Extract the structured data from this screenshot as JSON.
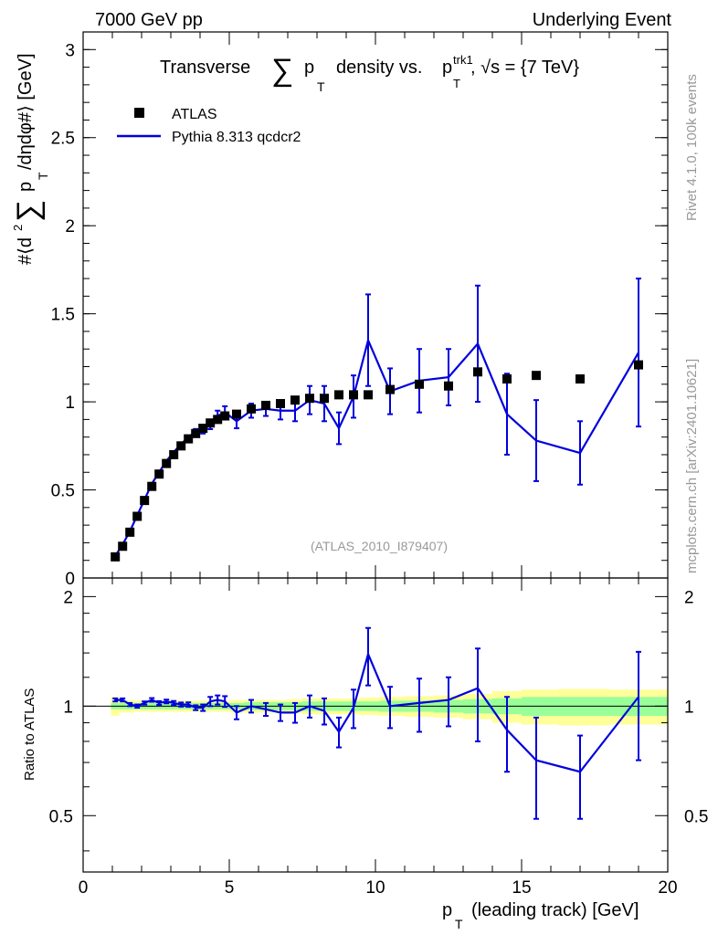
{
  "header": {
    "left": "7000 GeV pp",
    "right": "Underlying Event"
  },
  "side_labels": {
    "top": "Rivet 4.1.0,  100k events",
    "bottom": "mcplots.cern.ch [arXiv:2401.10621]"
  },
  "colors": {
    "mc": "#0000dd",
    "data": "#000000",
    "band_inner": "#99ff99",
    "band_outer": "#ffff99",
    "watermark": "#999999"
  },
  "chart_data": [
    {
      "type": "scatter",
      "title": "Transverse ∑ p_T density vs. p_T^trk1, √s = {7 TeV}",
      "title_parts": {
        "a": "Transverse",
        "sum": "∑",
        "pt": "p",
        "t": "T",
        "b": "density vs.",
        "trk": "trk1",
        "c": ", √s = {7 TeV}"
      },
      "ylabel_parts": {
        "a": "#⟨d",
        "sq": "2",
        "sum": "∑",
        "p": "p",
        "t": "T",
        "b": "/dηdφ#⟩ [GeV]"
      },
      "xlim": [
        0,
        20
      ],
      "ylim": [
        0,
        3.1
      ],
      "yticks": [
        0,
        0.5,
        1,
        1.5,
        2,
        2.5,
        3
      ],
      "ytick_labels": [
        "0",
        "0.5",
        "1",
        "1.5",
        "2",
        "2.5",
        "3"
      ],
      "watermark": "(ATLAS_2010_I879407)",
      "legend": [
        {
          "name": "ATLAS",
          "marker": "square"
        },
        {
          "name": "Pythia 8.313 qcdcr2",
          "marker": "line"
        }
      ],
      "series": [
        {
          "name": "ATLAS",
          "x": [
            1.1,
            1.35,
            1.6,
            1.85,
            2.1,
            2.35,
            2.6,
            2.85,
            3.1,
            3.35,
            3.6,
            3.85,
            4.1,
            4.35,
            4.6,
            4.85,
            5.25,
            5.75,
            6.25,
            6.75,
            7.25,
            7.75,
            8.25,
            8.75,
            9.25,
            9.75,
            10.5,
            11.5,
            12.5,
            13.5,
            14.5,
            15.5,
            17.0,
            19.0
          ],
          "y": [
            0.12,
            0.18,
            0.26,
            0.35,
            0.44,
            0.52,
            0.59,
            0.65,
            0.7,
            0.75,
            0.79,
            0.82,
            0.85,
            0.88,
            0.9,
            0.92,
            0.93,
            0.96,
            0.98,
            0.99,
            1.01,
            1.02,
            1.02,
            1.04,
            1.04,
            1.04,
            1.07,
            1.1,
            1.09,
            1.17,
            1.13,
            1.15,
            1.13,
            1.21
          ]
        },
        {
          "name": "Pythia 8.313 qcdcr2",
          "x": [
            1.1,
            1.35,
            1.6,
            1.85,
            2.1,
            2.35,
            2.6,
            2.85,
            3.1,
            3.35,
            3.6,
            3.85,
            4.1,
            4.35,
            4.6,
            4.85,
            5.25,
            5.75,
            6.25,
            6.75,
            7.25,
            7.75,
            8.25,
            8.75,
            9.25,
            9.75,
            10.5,
            11.5,
            12.5,
            13.5,
            14.5,
            15.5,
            17.0,
            19.0
          ],
          "y": [
            0.125,
            0.19,
            0.265,
            0.355,
            0.445,
            0.535,
            0.6,
            0.665,
            0.715,
            0.76,
            0.8,
            0.83,
            0.84,
            0.87,
            0.92,
            0.94,
            0.89,
            0.95,
            0.96,
            0.95,
            0.95,
            1.01,
            0.99,
            0.85,
            1.03,
            1.35,
            1.06,
            1.12,
            1.14,
            1.33,
            0.93,
            0.78,
            0.71,
            1.28
          ],
          "err": [
            0.005,
            0.006,
            0.007,
            0.008,
            0.009,
            0.01,
            0.01,
            0.012,
            0.012,
            0.014,
            0.015,
            0.016,
            0.02,
            0.025,
            0.03,
            0.035,
            0.04,
            0.04,
            0.04,
            0.05,
            0.06,
            0.08,
            0.1,
            0.09,
            0.12,
            0.26,
            0.13,
            0.18,
            0.16,
            0.33,
            0.23,
            0.23,
            0.18,
            0.42
          ]
        }
      ]
    },
    {
      "type": "line",
      "ylabel": "Ratio to ATLAS",
      "xlabel_parts": {
        "p": "p",
        "t": "T",
        "rest": "(leading track) [GeV]"
      },
      "xlim": [
        0,
        20
      ],
      "ylim": [
        0.35,
        2.25
      ],
      "yticks": [
        0.5,
        1,
        2
      ],
      "ytick_labels": [
        "0.5",
        "1",
        "2"
      ],
      "xticks": [
        0,
        5,
        10,
        15,
        20
      ],
      "xtick_labels": [
        "0",
        "5",
        "10",
        "15",
        "20"
      ],
      "band_inner": [
        0.02,
        0.02,
        0.02,
        0.02,
        0.02,
        0.02,
        0.02,
        0.02,
        0.02,
        0.02,
        0.02,
        0.02,
        0.02,
        0.02,
        0.02,
        0.02,
        0.02,
        0.025,
        0.025,
        0.025,
        0.025,
        0.03,
        0.03,
        0.03,
        0.03,
        0.03,
        0.035,
        0.035,
        0.04,
        0.045,
        0.05,
        0.06,
        0.06,
        0.06
      ],
      "band_outer": [
        0.06,
        0.04,
        0.04,
        0.035,
        0.035,
        0.035,
        0.035,
        0.035,
        0.035,
        0.035,
        0.035,
        0.035,
        0.035,
        0.035,
        0.035,
        0.035,
        0.04,
        0.04,
        0.04,
        0.04,
        0.045,
        0.05,
        0.05,
        0.05,
        0.05,
        0.055,
        0.06,
        0.065,
        0.07,
        0.08,
        0.1,
        0.11,
        0.115,
        0.11
      ],
      "series": [
        {
          "name": "Pythia 8.313 qcdcr2 / ATLAS",
          "y": [
            1.04,
            1.04,
            1.01,
            1.0,
            1.02,
            1.04,
            1.02,
            1.03,
            1.02,
            1.01,
            1.01,
            0.99,
            0.99,
            1.03,
            1.04,
            1.03,
            0.96,
            1.0,
            0.98,
            0.96,
            0.96,
            1.0,
            0.97,
            0.85,
            0.99,
            1.39,
            1.0,
            1.02,
            1.04,
            1.12,
            0.86,
            0.71,
            0.66,
            1.06
          ],
          "err": [
            0.01,
            0.01,
            0.01,
            0.01,
            0.01,
            0.012,
            0.012,
            0.012,
            0.013,
            0.013,
            0.014,
            0.015,
            0.02,
            0.03,
            0.03,
            0.035,
            0.04,
            0.04,
            0.04,
            0.05,
            0.06,
            0.07,
            0.08,
            0.08,
            0.12,
            0.25,
            0.13,
            0.17,
            0.16,
            0.32,
            0.2,
            0.22,
            0.17,
            0.35
          ]
        }
      ]
    }
  ]
}
